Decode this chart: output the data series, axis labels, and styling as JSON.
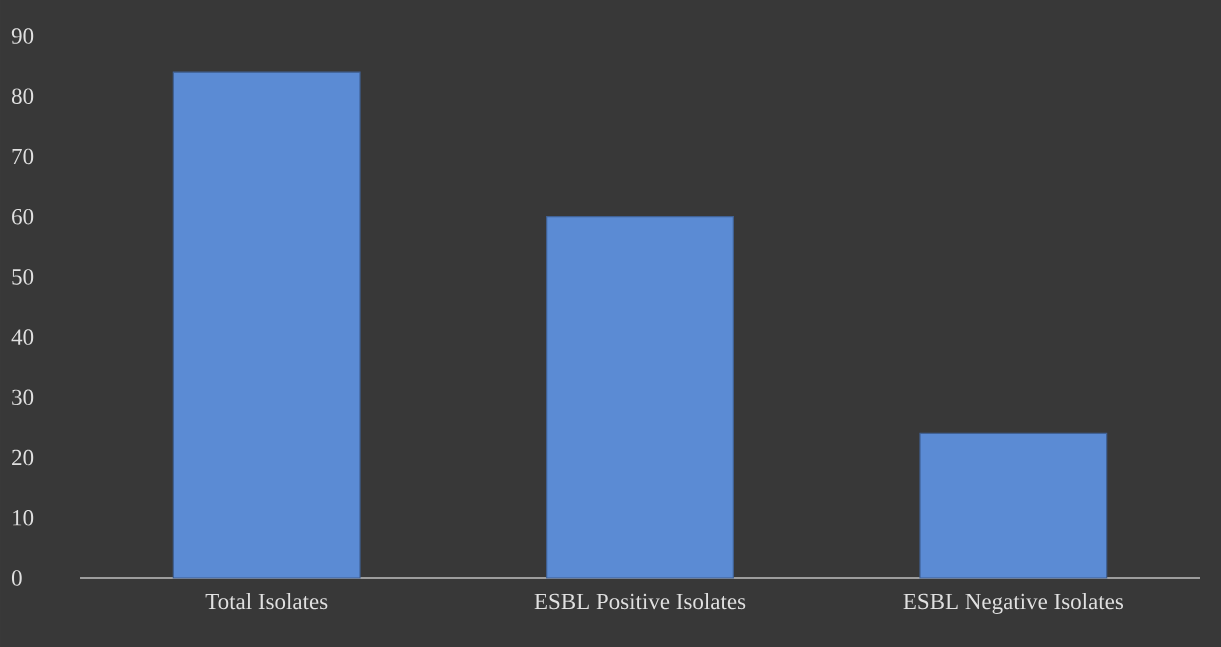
{
  "chart_data": {
    "type": "bar",
    "categories": [
      "Total Isolates",
      "ESBL Positive Isolates",
      "ESBL Negative Isolates"
    ],
    "values": [
      84,
      60,
      24
    ],
    "color": "#5b8bd4",
    "ylim": [
      0,
      90
    ],
    "yticks": [
      0,
      10,
      20,
      30,
      40,
      50,
      60,
      70,
      80,
      90
    ]
  }
}
